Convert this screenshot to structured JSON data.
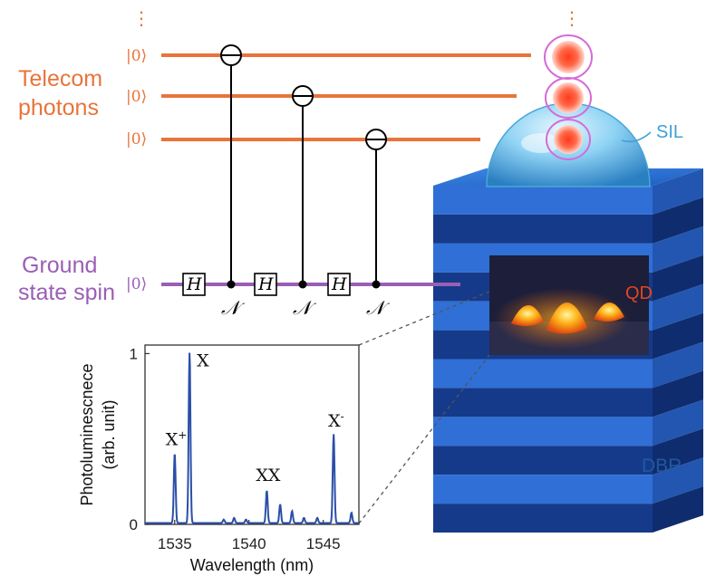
{
  "labels": {
    "telecom_line1": "Telecom",
    "telecom_line2": "photons",
    "spin_line1": "Ground",
    "spin_line2": "state spin",
    "ket": "|0⟩",
    "vdots": "⋮",
    "hadamard": "H",
    "noise": "𝒩",
    "sil": "SIL",
    "qd": "QD",
    "dbr": "DBR"
  },
  "colors": {
    "photon_line": "#e8743b",
    "spin_line": "#9a5fb5",
    "spectrum": "#2b4fa8",
    "dbr_light": "#2f6fd6",
    "dbr_dark": "#153a8a",
    "sil": "#8fd3f4",
    "qd": "#ff8c1a"
  },
  "chart_data": {
    "type": "line",
    "xlabel": "Wavelength (nm)",
    "ylabel_line1": "Photoluminescnece",
    "ylabel_line2": "(arb. unit)",
    "xlim": [
      1533,
      1547.4
    ],
    "ylim": [
      0,
      1.05
    ],
    "xticks": [
      1535,
      1540,
      1545
    ],
    "yticks": [
      0,
      1
    ],
    "ytick_labels": [
      "0",
      "1"
    ],
    "peaks": [
      {
        "x": 1535.0,
        "y": 0.41,
        "label": "X",
        "sup": "+"
      },
      {
        "x": 1536.0,
        "y": 1.0,
        "label": "X",
        "sup": ""
      },
      {
        "x": 1541.2,
        "y": 0.19,
        "label": "XX",
        "sup": ""
      },
      {
        "x": 1545.7,
        "y": 0.52,
        "label": "X",
        "sup": "-"
      }
    ],
    "minor_peaks": [
      {
        "x": 1538.3,
        "y": 0.02
      },
      {
        "x": 1539.0,
        "y": 0.03
      },
      {
        "x": 1539.8,
        "y": 0.02
      },
      {
        "x": 1542.1,
        "y": 0.11
      },
      {
        "x": 1542.9,
        "y": 0.07
      },
      {
        "x": 1543.7,
        "y": 0.03
      },
      {
        "x": 1544.6,
        "y": 0.03
      },
      {
        "x": 1546.9,
        "y": 0.06
      }
    ]
  }
}
